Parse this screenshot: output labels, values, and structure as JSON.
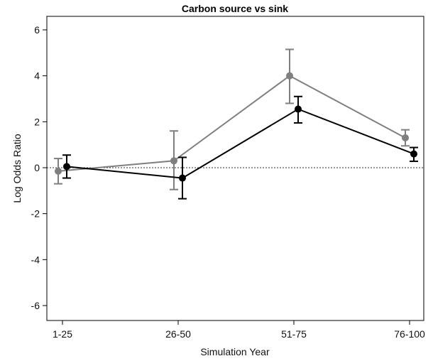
{
  "chart_data": {
    "type": "line",
    "title": "Carbon source vs sink",
    "xlabel": "Simulation Year",
    "ylabel": "Log Odds Ratio",
    "categories": [
      "1-25",
      "26-50",
      "51-75",
      "76-100"
    ],
    "y_ticks": [
      "6",
      "4",
      "2",
      "0",
      "-2",
      "-4",
      "-6"
    ],
    "y_tick_values": [
      6,
      4,
      2,
      0,
      -2,
      -4,
      -6
    ],
    "ylim": [
      -6.5,
      6.5
    ],
    "reference_line": {
      "y": 0,
      "style": "dotted"
    },
    "grid": false,
    "legend": "none",
    "series": [
      {
        "color": "#7f7f7f",
        "values": [
          -0.15,
          0.3,
          4.0,
          1.3
        ],
        "lower": [
          -0.7,
          -0.95,
          2.8,
          0.95
        ],
        "upper": [
          0.4,
          1.6,
          5.15,
          1.65
        ]
      },
      {
        "color": "#000000",
        "values": [
          0.05,
          -0.45,
          2.55,
          0.6
        ],
        "lower": [
          -0.45,
          -1.35,
          1.95,
          0.28
        ],
        "upper": [
          0.55,
          0.45,
          3.1,
          0.88
        ]
      }
    ]
  }
}
